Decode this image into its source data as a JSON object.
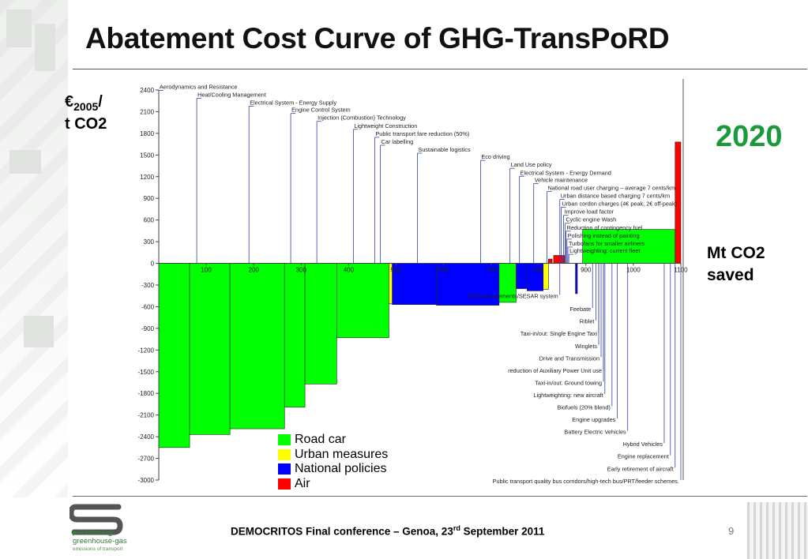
{
  "slide": {
    "title": "Abatement Cost Curve of GHG-TransPoRD",
    "y_unit_line1": "€",
    "y_unit_sub": "2005",
    "y_unit_slash": "/",
    "y_unit_line2": "t CO2",
    "year_label": "2020",
    "x_unit_line1": "Mt CO2",
    "x_unit_line2": "saved",
    "footer_main": "DEMOCRITOS Final conference – Genoa, 23",
    "footer_sup": "rd",
    "footer_end": " September 2011",
    "page_number": "9",
    "logo_line1": "▶Reducing",
    "logo_line2": "greenhouse-gas",
    "logo_line3": "emissions of transport"
  },
  "colors": {
    "road": "#00ff00",
    "urban": "#ffff00",
    "national": "#0000ff",
    "air": "#ff0000",
    "leader": "#3344aa"
  },
  "chart_data": {
    "type": "bar",
    "xlim": [
      -35,
      1130
    ],
    "ylim": [
      -3000,
      2400
    ],
    "yticks": [
      2400,
      2100,
      1800,
      1500,
      1200,
      900,
      600,
      300,
      0,
      -300,
      -600,
      -900,
      -1200,
      -1500,
      -1800,
      -2100,
      -2400,
      -2700,
      -3000
    ],
    "xticks": [
      100,
      200,
      300,
      400,
      500,
      600,
      700,
      800,
      900,
      1000,
      1100
    ],
    "legend": [
      {
        "category": "road",
        "label": "Road car"
      },
      {
        "category": "urban",
        "label": "Urban measures"
      },
      {
        "category": "national",
        "label": "National policies"
      },
      {
        "category": "air",
        "label": "Air"
      }
    ],
    "bars": [
      {
        "x0": 0,
        "x1": 65,
        "y": -2550,
        "category": "road"
      },
      {
        "x0": 65,
        "x1": 150,
        "y": -2370,
        "category": "road"
      },
      {
        "x0": 150,
        "x1": 265,
        "y": -2290,
        "category": "road"
      },
      {
        "x0": 265,
        "x1": 308,
        "y": -1990,
        "category": "road"
      },
      {
        "x0": 308,
        "x1": 375,
        "y": -1670,
        "category": "road"
      },
      {
        "x0": 375,
        "x1": 485,
        "y": -1030,
        "category": "road"
      },
      {
        "x0": 485,
        "x1": 492,
        "y": -560,
        "category": "urban"
      },
      {
        "x0": 492,
        "x1": 585,
        "y": -570,
        "category": "national"
      },
      {
        "x0": 585,
        "x1": 717,
        "y": -580,
        "category": "national"
      },
      {
        "x0": 717,
        "x1": 753,
        "y": -540,
        "category": "road"
      },
      {
        "x0": 753,
        "x1": 776,
        "y": -350,
        "category": "national"
      },
      {
        "x0": 776,
        "x1": 810,
        "y": -380,
        "category": "national"
      },
      {
        "x0": 810,
        "x1": 821,
        "y": -360,
        "category": "urban"
      },
      {
        "x0": 821,
        "x1": 829,
        "y": 60,
        "category": "air"
      },
      {
        "x0": 832,
        "x1": 855,
        "y": 110,
        "category": "air"
      },
      {
        "x0": 878,
        "x1": 882,
        "y": -420,
        "category": "national"
      },
      {
        "x0": 893,
        "x1": 1088,
        "y": 470,
        "category": "road"
      },
      {
        "x0": 1088,
        "x1": 1100,
        "y": 1680,
        "category": "air"
      }
    ],
    "labels_above": [
      {
        "text": "Aerodynamics and Resistance",
        "x": 0,
        "y": 2330
      },
      {
        "text": "Heat/Cooling Management",
        "x": 80,
        "y": 2220
      },
      {
        "text": "Electrical System - Energy Supply",
        "x": 190,
        "y": 2110
      },
      {
        "text": "Engine Control System",
        "x": 278,
        "y": 2010
      },
      {
        "text": "Injection (Combustion) Technology",
        "x": 333,
        "y": 1900
      },
      {
        "text": "Lightweight Construction",
        "x": 410,
        "y": 1790
      },
      {
        "text": "Public transport fare reduction (50%)",
        "x": 455,
        "y": 1680
      },
      {
        "text": "Car labelling",
        "x": 467,
        "y": 1570
      },
      {
        "text": "Sustainable logistics",
        "x": 545,
        "y": 1460
      },
      {
        "text": "Eco driving",
        "x": 678,
        "y": 1360
      },
      {
        "text": "Land Use policy",
        "x": 740,
        "y": 1250
      },
      {
        "text": "Electrical System - Energy Demand",
        "x": 760,
        "y": 1140
      },
      {
        "text": "Vehicle maintenance",
        "x": 790,
        "y": 1040
      },
      {
        "text": "National road user charging – average 7 cents/km",
        "x": 818,
        "y": 930
      },
      {
        "text": "Urban distance based charging 7 cents/km",
        "x": 845,
        "y": 820
      },
      {
        "text": "Urban cordon charges (4€ peak; 2€ off-peak)",
        "x": 848,
        "y": 710
      },
      {
        "text": "Improve load factor",
        "x": 853,
        "y": 600
      },
      {
        "text": "Cyclic engine Wash",
        "x": 856,
        "y": 490
      },
      {
        "text": "Reduction of contingency fuel",
        "x": 858,
        "y": 380
      },
      {
        "text": "Polishing instead of painting",
        "x": 860,
        "y": 270
      },
      {
        "text": "Turbofans for smaller airliners",
        "x": 862,
        "y": 160
      },
      {
        "text": "Lightweighting: current fleet",
        "x": 864,
        "y": 60
      }
    ],
    "labels_below": [
      {
        "text": "ATM improvements/SESAR system",
        "x": 845,
        "y": -460
      },
      {
        "text": "Feebate",
        "x": 914,
        "y": -640
      },
      {
        "text": "Riblet",
        "x": 921,
        "y": -810
      },
      {
        "text": "Taxi-in/out: Single Engine Taxi",
        "x": 927,
        "y": -980
      },
      {
        "text": "Winglets",
        "x": 927,
        "y": -1150
      },
      {
        "text": "Drive and Transmission",
        "x": 932,
        "y": -1320
      },
      {
        "text": "reduction of Auxiliary Power Unit use",
        "x": 937,
        "y": -1490
      },
      {
        "text": "Taxi-in/out: Ground towing",
        "x": 937,
        "y": -1660
      },
      {
        "text": "Lightweighting: new aircraft",
        "x": 940,
        "y": -1830
      },
      {
        "text": "Biofuels (20% blend)",
        "x": 955,
        "y": -2000
      },
      {
        "text": "Engine upgrades",
        "x": 966,
        "y": -2170
      },
      {
        "text": "Battery Electric Vehicles",
        "x": 988,
        "y": -2340
      },
      {
        "text": "Hybrid Vehicles",
        "x": 1065,
        "y": -2510
      },
      {
        "text": "Engine replacement",
        "x": 1078,
        "y": -2680
      },
      {
        "text": "Early retirement of aircraft",
        "x": 1088,
        "y": -2850
      },
      {
        "text": "Public transport quality bus corridors/high-tech bus/PRT/feeder schemes.",
        "x": 1100,
        "y": -3020
      }
    ]
  }
}
